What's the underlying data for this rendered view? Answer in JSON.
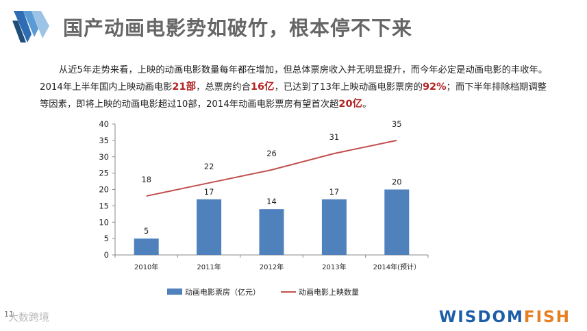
{
  "header": {
    "title": "国产动画电影势如破竹，根本停不下来"
  },
  "paragraph": {
    "part1": "从近5年走势来看，上映的动画电影数量每年都在增加，但总体票房收入并无明显提升，而今年必定是动画电影的丰收年。2014年上半年国内上映动画电影",
    "h1": "21部",
    "part2": "，总票房约合",
    "h2": "16亿",
    "part3": "，已达到了13年上映动画电影票房的",
    "h3": "92%",
    "part4": "；而下半年排除档期调整等因素，即将上映的动画电影超过10部，2014年动画电影票房有望首次超",
    "h4": "20亿",
    "part5": "。"
  },
  "chart_data": {
    "type": "bar+line",
    "categories": [
      "2010年",
      "2011年",
      "2012年",
      "2013年",
      "2014年(预计）"
    ],
    "series": [
      {
        "name": "动画电影票房（亿元）",
        "type": "bar",
        "color": "#4f81bd",
        "values": [
          5,
          17,
          14,
          17,
          20
        ]
      },
      {
        "name": "动画电影上映数量",
        "type": "line",
        "color": "#c0504d",
        "values": [
          18,
          22,
          26,
          31,
          35
        ]
      }
    ],
    "ylim": [
      0,
      40
    ],
    "yticks": [
      0,
      5,
      10,
      15,
      20,
      25,
      30,
      35,
      40
    ],
    "legend_position": "bottom"
  },
  "footer": {
    "page_number": "11",
    "watermark": "大数跨境",
    "brand_main": "WISDOM",
    "brand_accent": "FISH"
  }
}
